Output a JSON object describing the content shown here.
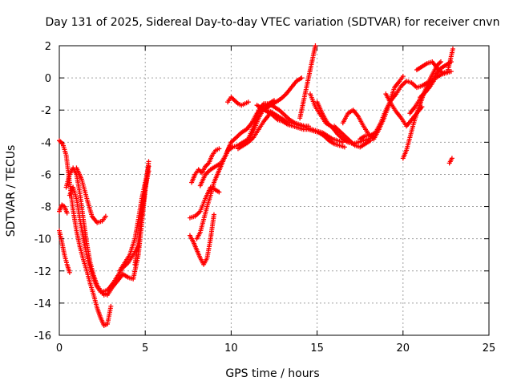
{
  "chart_data": {
    "type": "scatter",
    "title": "Day 131 of 2025, Sidereal Day-to-day VTEC variation (SDTVAR) for receiver cnvn",
    "xlabel": "GPS time / hours",
    "ylabel": "SDTVAR / TECUs",
    "xlim": [
      0,
      25
    ],
    "ylim": [
      -16,
      2
    ],
    "xticks": [
      "0",
      "5",
      "10",
      "15",
      "20",
      "25"
    ],
    "yticks": [
      "-16",
      "-14",
      "-12",
      "-10",
      "-8",
      "-6",
      "-4",
      "-2",
      "0",
      "2"
    ],
    "grid": true,
    "marker": "+",
    "color": "#ff0000",
    "series": [
      {
        "x": [
          0.0,
          0.15,
          0.3,
          0.45,
          0.6
        ],
        "y": [
          -9.5,
          -10.2,
          -11.0,
          -11.6,
          -12.1
        ]
      },
      {
        "x": [
          0.0,
          0.15,
          0.3,
          0.45
        ],
        "y": [
          -8.3,
          -7.9,
          -8.0,
          -8.4
        ]
      },
      {
        "x": [
          0.0,
          0.2,
          0.4,
          0.6,
          0.8,
          1.0,
          1.2,
          1.4,
          1.6,
          1.8,
          2.0,
          2.2,
          2.4,
          2.6,
          2.8,
          3.0
        ],
        "y": [
          -3.9,
          -4.1,
          -4.8,
          -6.5,
          -8.2,
          -9.5,
          -10.5,
          -11.3,
          -12.0,
          -12.8,
          -13.5,
          -14.3,
          -14.9,
          -15.4,
          -15.3,
          -14.2
        ]
      },
      {
        "x": [
          0.4,
          0.6,
          0.8,
          1.0,
          1.2,
          1.4,
          1.6,
          1.8,
          2.0,
          2.2,
          2.4,
          2.6,
          2.8
        ],
        "y": [
          -6.8,
          -6.0,
          -5.6,
          -6.0,
          -7.2,
          -8.8,
          -10.3,
          -11.5,
          -12.3,
          -12.9,
          -13.2,
          -13.5,
          -13.4
        ]
      },
      {
        "x": [
          0.6,
          0.8,
          1.0,
          1.2,
          1.4,
          1.6,
          1.8,
          2.0,
          2.2,
          2.4,
          2.6
        ],
        "y": [
          -7.3,
          -6.8,
          -7.5,
          -8.8,
          -10.0,
          -11.0,
          -11.8,
          -12.5,
          -13.0,
          -13.3,
          -13.4
        ]
      },
      {
        "x": [
          1.0,
          1.3,
          1.6,
          1.9,
          2.2,
          2.5,
          2.7
        ],
        "y": [
          -5.6,
          -6.3,
          -7.5,
          -8.6,
          -9.0,
          -8.9,
          -8.6
        ]
      },
      {
        "x": [
          2.5,
          2.8,
          3.1,
          3.4,
          3.7,
          4.0,
          4.3,
          4.6
        ],
        "y": [
          -13.3,
          -13.2,
          -12.8,
          -12.3,
          -11.8,
          -11.5,
          -11.0,
          -10.5
        ]
      },
      {
        "x": [
          2.8,
          3.1,
          3.4,
          3.7,
          4.0,
          4.3,
          4.6,
          4.8,
          5.0,
          5.2
        ],
        "y": [
          -13.5,
          -13.0,
          -12.6,
          -12.2,
          -12.4,
          -12.5,
          -11.0,
          -9.0,
          -7.0,
          -5.2
        ]
      },
      {
        "x": [
          3.5,
          3.8,
          4.1,
          4.4,
          4.6,
          4.8,
          5.0,
          5.2
        ],
        "y": [
          -12.0,
          -11.5,
          -11.0,
          -10.0,
          -8.8,
          -7.5,
          -6.5,
          -5.5
        ]
      },
      {
        "x": [
          4.4,
          4.6,
          4.8,
          5.0,
          5.2
        ],
        "y": [
          -11.6,
          -10.2,
          -8.5,
          -6.8,
          -5.8
        ]
      },
      {
        "x": [
          7.7,
          7.9,
          8.1,
          8.3,
          8.5,
          8.7,
          8.9,
          9.1,
          9.3
        ],
        "y": [
          -6.5,
          -6.0,
          -5.7,
          -5.9,
          -5.5,
          -5.3,
          -4.8,
          -4.5,
          -4.4
        ]
      },
      {
        "x": [
          7.6,
          7.8,
          8.0,
          8.2,
          8.4,
          8.6,
          8.8,
          9.0
        ],
        "y": [
          -9.8,
          -10.2,
          -10.7,
          -11.2,
          -11.6,
          -11.2,
          -10.0,
          -8.5
        ]
      },
      {
        "x": [
          7.6,
          7.9,
          8.2,
          8.5,
          8.8,
          9.0,
          9.3
        ],
        "y": [
          -8.7,
          -8.6,
          -8.3,
          -7.5,
          -6.8,
          -6.9,
          -7.1
        ]
      },
      {
        "x": [
          8.0,
          8.2,
          8.4,
          8.6,
          8.8,
          9.0,
          9.2,
          9.4,
          9.6,
          9.8,
          10.0
        ],
        "y": [
          -10.0,
          -9.6,
          -8.8,
          -8.0,
          -7.3,
          -6.5,
          -6.0,
          -5.5,
          -5.0,
          -4.5,
          -4.0
        ]
      },
      {
        "x": [
          8.2,
          8.5,
          8.8,
          9.1,
          9.4,
          9.7,
          10.0,
          10.3,
          10.6,
          10.9,
          11.2,
          11.5,
          11.8
        ],
        "y": [
          -6.7,
          -6.0,
          -5.7,
          -5.5,
          -5.3,
          -4.8,
          -4.0,
          -3.7,
          -3.4,
          -3.2,
          -2.8,
          -2.2,
          -1.9
        ]
      },
      {
        "x": [
          9.8,
          10.0,
          10.2,
          10.4,
          10.6,
          10.8,
          11.0
        ],
        "y": [
          -1.5,
          -1.2,
          -1.4,
          -1.6,
          -1.7,
          -1.6,
          -1.5
        ]
      },
      {
        "x": [
          9.8,
          10.1,
          10.4,
          10.7,
          11.0,
          11.3,
          11.6,
          11.9,
          12.2,
          12.5
        ],
        "y": [
          -4.5,
          -4.3,
          -4.2,
          -4.0,
          -3.8,
          -3.3,
          -2.5,
          -1.9,
          -1.6,
          -1.4
        ]
      },
      {
        "x": [
          10.4,
          10.7,
          11.0,
          11.3,
          11.6,
          11.9,
          12.2
        ],
        "y": [
          -4.4,
          -4.2,
          -4.0,
          -3.7,
          -3.2,
          -2.7,
          -2.3
        ]
      },
      {
        "x": [
          11.0,
          11.3,
          11.6,
          11.9,
          12.2,
          12.5,
          12.8,
          13.1,
          13.4,
          13.7,
          14.0,
          14.3,
          14.5
        ],
        "y": [
          -3.8,
          -3.0,
          -2.0,
          -1.6,
          -1.6,
          -1.8,
          -2.0,
          -2.3,
          -2.6,
          -2.8,
          -2.9,
          -3.0,
          -3.0
        ]
      },
      {
        "x": [
          11.5,
          11.8,
          12.1,
          12.4,
          12.7,
          13.0,
          13.3,
          13.6,
          13.9,
          14.2,
          14.5,
          14.8,
          15.1,
          15.4,
          15.7,
          16.0,
          16.3,
          16.6
        ],
        "y": [
          -1.7,
          -1.9,
          -2.1,
          -2.3,
          -2.6,
          -2.7,
          -2.9,
          -3.0,
          -3.1,
          -3.2,
          -3.2,
          -3.3,
          -3.4,
          -3.6,
          -3.9,
          -4.1,
          -4.2,
          -4.3
        ]
      },
      {
        "x": [
          12.0,
          12.3,
          12.6,
          12.9,
          13.2,
          13.5,
          13.8,
          14.1
        ],
        "y": [
          -1.9,
          -1.7,
          -1.5,
          -1.3,
          -1.0,
          -0.6,
          -0.2,
          0.0
        ]
      },
      {
        "x": [
          12.0,
          12.3,
          12.6,
          12.9,
          13.2,
          13.5,
          13.8,
          14.1,
          14.4,
          14.7,
          15.0,
          15.3,
          15.6,
          15.9,
          16.2,
          16.5
        ],
        "y": [
          -2.0,
          -2.1,
          -2.3,
          -2.5,
          -2.7,
          -2.8,
          -2.9,
          -3.0,
          -3.1,
          -3.2,
          -3.3,
          -3.4,
          -3.6,
          -3.8,
          -3.9,
          -4.0
        ]
      },
      {
        "x": [
          14.0,
          14.2,
          14.4,
          14.6,
          14.8,
          14.9
        ],
        "y": [
          -2.5,
          -1.5,
          -0.5,
          0.5,
          1.5,
          2.0
        ]
      },
      {
        "x": [
          14.6,
          14.9,
          15.2,
          15.5,
          15.8,
          16.1
        ],
        "y": [
          -1.0,
          -1.8,
          -2.3,
          -2.8,
          -3.0,
          -3.2
        ]
      },
      {
        "x": [
          15.0,
          15.3,
          15.6,
          15.9,
          16.2,
          16.5,
          16.8,
          17.1,
          17.4,
          17.7,
          18.0,
          18.3
        ],
        "y": [
          -1.5,
          -2.2,
          -2.8,
          -3.1,
          -3.5,
          -3.8,
          -4.0,
          -4.1,
          -4.0,
          -3.9,
          -3.8,
          -3.7
        ]
      },
      {
        "x": [
          16.0,
          16.3,
          16.6,
          16.9,
          17.2,
          17.5,
          17.8,
          18.1
        ],
        "y": [
          -3.0,
          -3.3,
          -3.6,
          -3.9,
          -4.2,
          -4.3,
          -4.1,
          -3.9
        ]
      },
      {
        "x": [
          16.5,
          16.8,
          17.1,
          17.4,
          17.7,
          18.0,
          18.3,
          18.6,
          18.9,
          19.2,
          19.5,
          19.8,
          20.0
        ],
        "y": [
          -2.8,
          -2.2,
          -2.0,
          -2.4,
          -3.0,
          -3.5,
          -3.8,
          -3.2,
          -2.5,
          -1.6,
          -0.6,
          -0.2,
          0.1
        ]
      },
      {
        "x": [
          17.5,
          17.8,
          18.1,
          18.4,
          18.7,
          19.0,
          19.3,
          19.6,
          19.9,
          20.2,
          20.5,
          20.8,
          21.1,
          21.4,
          21.7
        ],
        "y": [
          -3.8,
          -3.6,
          -3.6,
          -3.4,
          -2.8,
          -2.0,
          -1.4,
          -1.0,
          -0.5,
          -0.2,
          -0.3,
          -0.6,
          -0.5,
          -0.3,
          -0.2
        ]
      },
      {
        "x": [
          19.0,
          19.3,
          19.6,
          19.9,
          20.2,
          20.5,
          20.8,
          21.1
        ],
        "y": [
          -1.0,
          -1.6,
          -2.1,
          -2.5,
          -3.0,
          -2.6,
          -2.2,
          -1.8
        ]
      },
      {
        "x": [
          20.0,
          20.2,
          20.4,
          20.6,
          20.8,
          21.0,
          21.2,
          21.4,
          21.6,
          21.8,
          22.0,
          22.2
        ],
        "y": [
          -5.0,
          -4.5,
          -3.7,
          -2.9,
          -2.2,
          -1.6,
          -1.0,
          -0.5,
          0.0,
          0.4,
          0.8,
          1.0
        ]
      },
      {
        "x": [
          20.4,
          20.7,
          21.0,
          21.3,
          21.6,
          21.9,
          22.2,
          22.5,
          22.8
        ],
        "y": [
          -2.2,
          -1.8,
          -1.3,
          -0.8,
          -0.3,
          0.2,
          0.6,
          0.8,
          1.0
        ]
      },
      {
        "x": [
          20.8,
          21.1,
          21.4,
          21.7,
          22.0,
          22.3,
          22.6,
          22.9
        ],
        "y": [
          0.5,
          0.7,
          0.9,
          1.0,
          0.6,
          0.3,
          0.4,
          1.8
        ]
      },
      {
        "x": [
          21.0,
          21.3,
          21.6,
          21.9,
          22.2,
          22.5,
          22.8
        ],
        "y": [
          -1.2,
          -0.9,
          -0.5,
          0.0,
          0.2,
          0.3,
          0.4
        ]
      },
      {
        "x": [
          22.7,
          22.85
        ],
        "y": [
          -5.3,
          -5.0
        ]
      }
    ]
  }
}
